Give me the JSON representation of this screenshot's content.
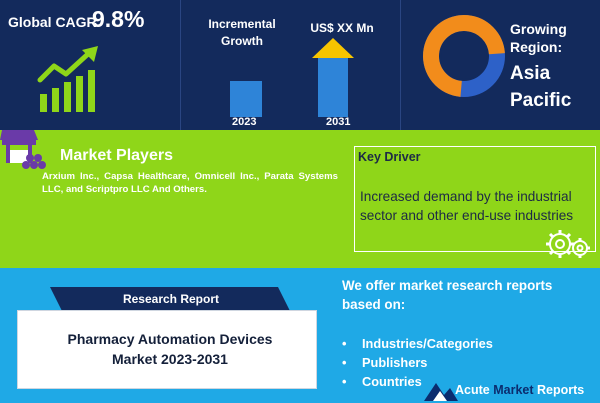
{
  "header": {
    "cagr_label": "Global CAGR",
    "cagr_value": "9.8%",
    "incremental_label_line1": "Incremental",
    "incremental_label_line2": "Growth",
    "usd_label": "US$ XX Mn",
    "year_start": "2023",
    "year_end": "2031",
    "region_label_line1": "Growing",
    "region_label_line2": "Region:",
    "region_value_line1": "Asia",
    "region_value_line2": "Pacific"
  },
  "market_players": {
    "title": "Market Players",
    "text": "Arxium Inc., Capsa Healthcare, Omnicell Inc., Parata Systems LLC, and Scriptpro LLC And Others."
  },
  "key_driver": {
    "title": "Key Driver",
    "text": "Increased demand by the industrial sector and other end-use industries"
  },
  "research_report": {
    "ribbon_label": "Research Report",
    "title_line1": "Pharmacy Automation Devices",
    "title_line2": "Market 2023-2031"
  },
  "offer": {
    "title": "We offer market research reports based on:",
    "items": [
      "Industries/Categories",
      "Publishers",
      "Countries"
    ],
    "bullet": "•"
  },
  "brand": {
    "word1": "Acute",
    "word2": "Market",
    "word3": "Reports"
  },
  "colors": {
    "navy": "#132a5c",
    "green": "#8fd619",
    "blue": "#1fa9e6",
    "bar_blue": "#2e84d8",
    "arrow_yellow": "#f6c400",
    "donut_orange": "#f28c1b"
  },
  "icons": {
    "growth": "growth-chart-icon",
    "store": "store-icon",
    "gears": "gears-icon",
    "donut": "donut-ring-icon",
    "logo": "mountain-logo-icon"
  }
}
